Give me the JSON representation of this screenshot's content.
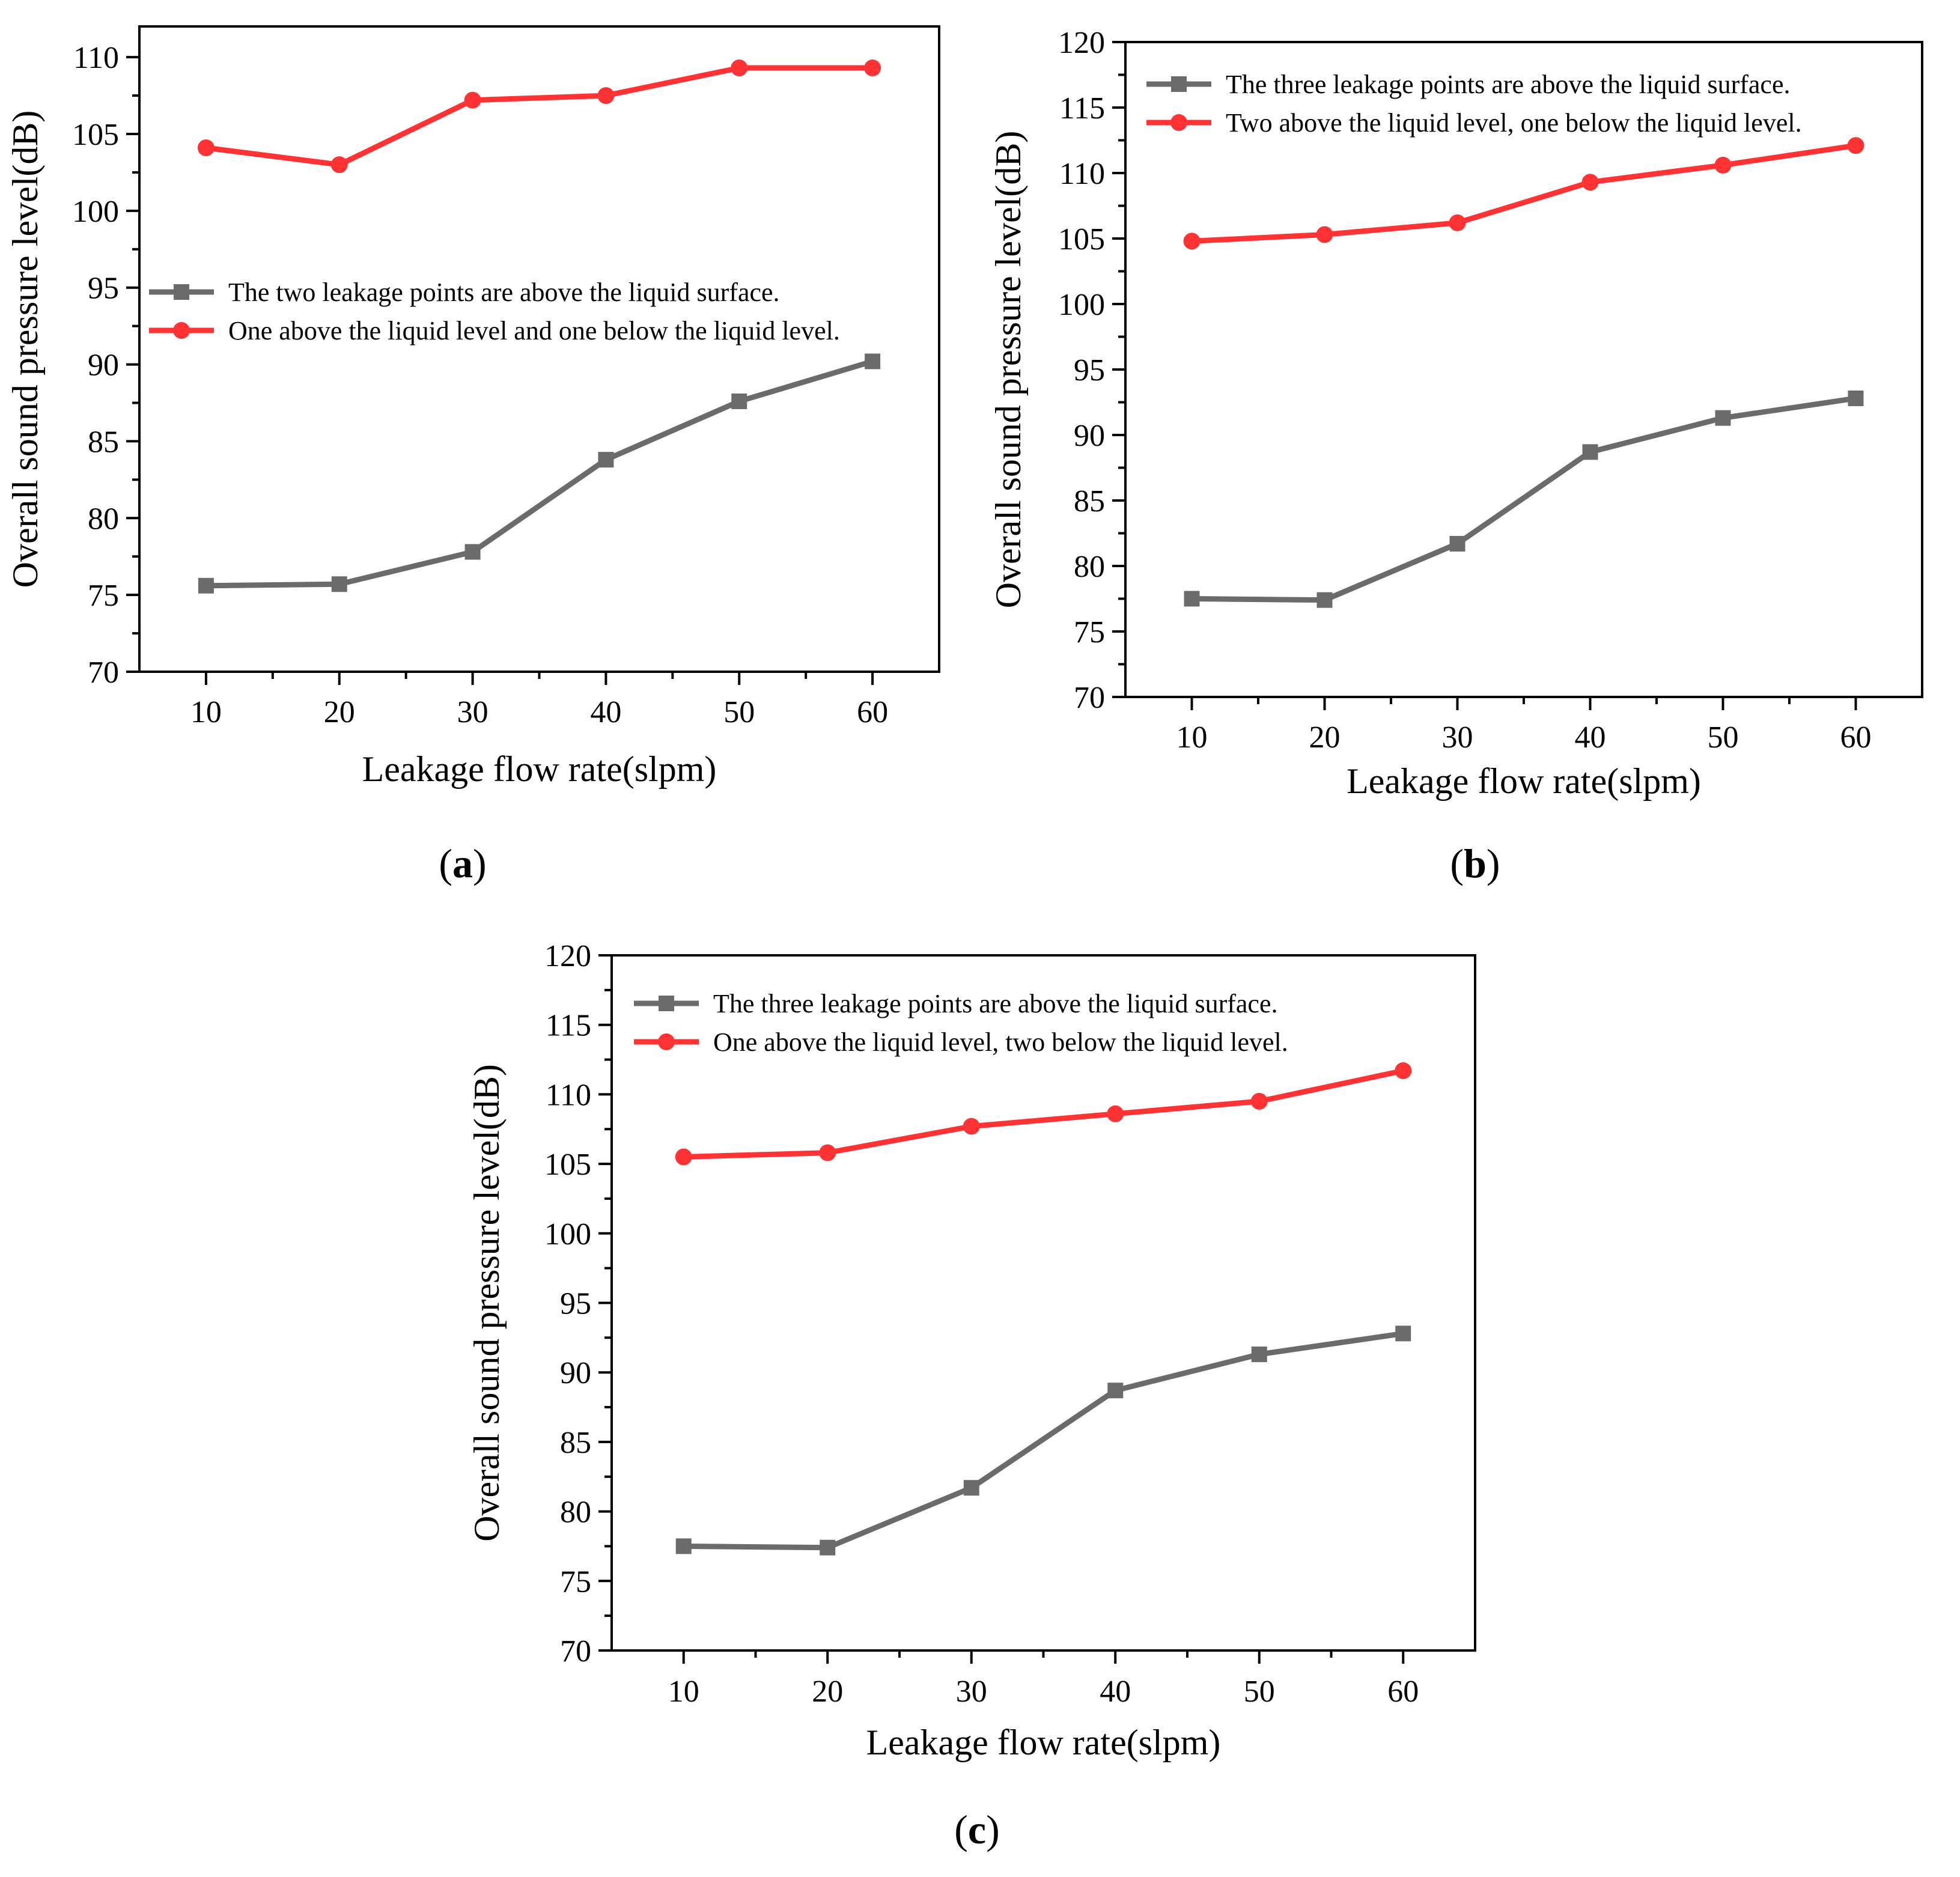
{
  "figure": {
    "background": "#ffffff",
    "series_colors": {
      "square": "#6b6b6b",
      "circle": "#ff3333"
    }
  },
  "chart_data": [
    {
      "panel": "a",
      "type": "line",
      "panel_label": {
        "open": "(",
        "letter": "a",
        "close": ")"
      },
      "xlabel": "Leakage flow rate(slpm)",
      "ylabel": "Overall sound pressure level(dB)",
      "xlim": [
        5,
        65
      ],
      "ylim": [
        70,
        112
      ],
      "xticks": [
        10,
        20,
        30,
        40,
        50,
        60
      ],
      "xticks_minor": [
        15,
        25,
        35,
        45,
        55
      ],
      "yticks": [
        70,
        75,
        80,
        85,
        90,
        95,
        100,
        105,
        110
      ],
      "x": [
        10,
        20,
        30,
        40,
        50,
        60
      ],
      "series": [
        {
          "name": "The two leakage points are above the liquid surface.",
          "marker": "square",
          "color": "#6b6b6b",
          "values": [
            75.6,
            75.7,
            77.8,
            83.8,
            87.6,
            90.2
          ]
        },
        {
          "name": "One above the liquid level and one below the liquid level.",
          "marker": "circle",
          "color": "#ff3333",
          "values": [
            104.1,
            103.0,
            107.2,
            107.5,
            109.3,
            109.3
          ]
        }
      ],
      "legend_position": "center-left"
    },
    {
      "panel": "b",
      "type": "line",
      "panel_label": {
        "open": "(",
        "letter": "b",
        "close": ")"
      },
      "xlabel": "Leakage flow rate(slpm)",
      "ylabel": "Overall sound pressure level(dB)",
      "xlim": [
        5,
        65
      ],
      "ylim": [
        70,
        120
      ],
      "xticks": [
        10,
        20,
        30,
        40,
        50,
        60
      ],
      "xticks_minor": [
        15,
        25,
        35,
        45,
        55
      ],
      "yticks": [
        70,
        75,
        80,
        85,
        90,
        95,
        100,
        105,
        110,
        115,
        120
      ],
      "x": [
        10,
        20,
        30,
        40,
        50,
        60
      ],
      "series": [
        {
          "name": "The three leakage points are above the liquid surface.",
          "marker": "square",
          "color": "#6b6b6b",
          "values": [
            77.5,
            77.4,
            81.7,
            88.7,
            91.3,
            92.8
          ]
        },
        {
          "name": "Two above the liquid level, one below the liquid level.",
          "marker": "circle",
          "color": "#ff3333",
          "values": [
            104.8,
            105.3,
            106.2,
            109.3,
            110.6,
            112.1
          ]
        }
      ],
      "legend_position": "top-left"
    },
    {
      "panel": "c",
      "type": "line",
      "panel_label": {
        "open": "(",
        "letter": "c",
        "close": ")"
      },
      "xlabel": "Leakage flow rate(slpm)",
      "ylabel": "Overall sound pressure level(dB)",
      "xlim": [
        5,
        65
      ],
      "ylim": [
        70,
        120
      ],
      "xticks": [
        10,
        20,
        30,
        40,
        50,
        60
      ],
      "xticks_minor": [
        15,
        25,
        35,
        45,
        55
      ],
      "yticks": [
        70,
        75,
        80,
        85,
        90,
        95,
        100,
        105,
        110,
        115,
        120
      ],
      "x": [
        10,
        20,
        30,
        40,
        50,
        60
      ],
      "series": [
        {
          "name": "The three leakage points are above the liquid surface.",
          "marker": "square",
          "color": "#6b6b6b",
          "values": [
            77.5,
            77.4,
            81.7,
            88.7,
            91.3,
            92.8
          ]
        },
        {
          "name": "One above the liquid level, two below the liquid level.",
          "marker": "circle",
          "color": "#ff3333",
          "values": [
            105.5,
            105.8,
            107.7,
            108.6,
            109.5,
            111.7
          ]
        }
      ],
      "legend_position": "top-left"
    }
  ]
}
